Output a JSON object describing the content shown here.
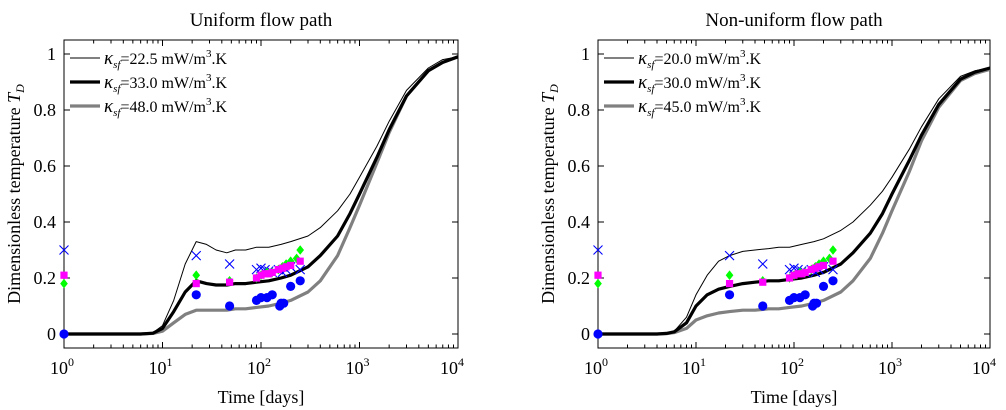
{
  "chart_data": [
    {
      "type": "line",
      "title": "Uniform flow path",
      "xlabel": "Time [days]",
      "ylabel": "Dimensionless temperature T_D",
      "ylabel_main": "Dimensionless temperature ",
      "ylabel_sym": "T",
      "ylabel_sub": "D",
      "xscale": "log",
      "xlim": [
        1,
        10000
      ],
      "ylim": [
        -0.05,
        1.05
      ],
      "x_ticks": [
        1,
        10,
        100,
        1000,
        10000
      ],
      "x_tick_labels": [
        {
          "base": "10",
          "exp": "0"
        },
        {
          "base": "10",
          "exp": "1"
        },
        {
          "base": "10",
          "exp": "2"
        },
        {
          "base": "10",
          "exp": "3"
        },
        {
          "base": "10",
          "exp": "4"
        }
      ],
      "y_ticks": [
        0,
        0.2,
        0.4,
        0.6,
        0.8,
        1
      ],
      "y_tick_labels": [
        "0",
        "0.2",
        "0.4",
        "0.6",
        "0.8",
        "1"
      ],
      "grid": false,
      "legend_position": "top-left",
      "series": [
        {
          "name": "κsf=22.5 mW/m3.K",
          "legend": {
            "sym": "κ",
            "sub": "sf",
            "val": "=22.5 mW/m",
            "sup": "3",
            "tail": ".K"
          },
          "color": "#000000",
          "style": "thin",
          "x": [
            1,
            2,
            4,
            6,
            8,
            10,
            13,
            17,
            22,
            28,
            35,
            45,
            55,
            70,
            90,
            120,
            160,
            200,
            300,
            400,
            600,
            800,
            1000,
            1500,
            2000,
            3000,
            5000,
            7000,
            10000
          ],
          "y": [
            0,
            0,
            0,
            0,
            0.005,
            0.03,
            0.12,
            0.25,
            0.33,
            0.32,
            0.3,
            0.29,
            0.3,
            0.3,
            0.31,
            0.31,
            0.32,
            0.33,
            0.35,
            0.38,
            0.44,
            0.5,
            0.56,
            0.67,
            0.76,
            0.87,
            0.95,
            0.98,
            0.99
          ]
        },
        {
          "name": "κsf=33.0 mW/m3.K",
          "legend": {
            "sym": "κ",
            "sub": "sf",
            "val": "=33.0 mW/m",
            "sup": "3",
            "tail": ".K"
          },
          "color": "#000000",
          "style": "thick",
          "x": [
            1,
            2,
            4,
            6,
            8,
            10,
            13,
            17,
            22,
            28,
            35,
            45,
            55,
            70,
            90,
            120,
            160,
            200,
            300,
            400,
            600,
            800,
            1000,
            1500,
            2000,
            3000,
            5000,
            7000,
            10000
          ],
          "y": [
            0,
            0,
            0,
            0,
            0.003,
            0.02,
            0.08,
            0.15,
            0.19,
            0.18,
            0.175,
            0.175,
            0.18,
            0.18,
            0.185,
            0.19,
            0.2,
            0.21,
            0.24,
            0.28,
            0.35,
            0.43,
            0.5,
            0.63,
            0.73,
            0.85,
            0.94,
            0.97,
            0.99
          ]
        },
        {
          "name": "κsf=48.0 mW/m3.K",
          "legend": {
            "sym": "κ",
            "sub": "sf",
            "val": "=48.0 mW/m",
            "sup": "3",
            "tail": ".K"
          },
          "color": "#808080",
          "style": "gray",
          "x": [
            1,
            2,
            4,
            6,
            8,
            10,
            13,
            17,
            22,
            28,
            35,
            45,
            55,
            70,
            90,
            120,
            160,
            200,
            300,
            400,
            600,
            800,
            1000,
            1500,
            2000,
            3000,
            5000,
            7000,
            10000
          ],
          "y": [
            0,
            0,
            0,
            0,
            0.002,
            0.01,
            0.04,
            0.07,
            0.085,
            0.085,
            0.085,
            0.085,
            0.09,
            0.09,
            0.095,
            0.1,
            0.11,
            0.12,
            0.15,
            0.19,
            0.28,
            0.38,
            0.46,
            0.61,
            0.72,
            0.85,
            0.94,
            0.97,
            0.99
          ]
        }
      ],
      "markers": {
        "blue_x": {
          "color": "#0000ff",
          "shape": "x",
          "x": [
            1,
            22,
            48,
            90,
            100,
            110,
            120,
            130,
            150,
            165,
            180,
            200,
            250
          ],
          "y": [
            0.3,
            0.28,
            0.25,
            0.23,
            0.235,
            0.23,
            0.225,
            0.22,
            0.23,
            0.22,
            0.23,
            0.24,
            0.23
          ]
        },
        "green_diamond": {
          "color": "#00ff00",
          "shape": "diamond",
          "x": [
            1,
            22,
            48,
            90,
            100,
            115,
            130,
            150,
            165,
            180,
            200,
            230,
            250
          ],
          "y": [
            0.18,
            0.21,
            0.19,
            0.2,
            0.21,
            0.22,
            0.22,
            0.23,
            0.24,
            0.25,
            0.26,
            0.27,
            0.3
          ]
        },
        "magenta_square": {
          "color": "#ff00ff",
          "shape": "square",
          "x": [
            1,
            22,
            48,
            90,
            100,
            110,
            120,
            130,
            150,
            165,
            180,
            200,
            250
          ],
          "y": [
            0.21,
            0.18,
            0.185,
            0.2,
            0.21,
            0.215,
            0.215,
            0.22,
            0.23,
            0.235,
            0.24,
            0.245,
            0.26
          ]
        },
        "blue_dot": {
          "color": "#0000ff",
          "shape": "circle",
          "x": [
            1,
            22,
            48,
            90,
            100,
            115,
            130,
            155,
            160,
            170,
            200,
            250
          ],
          "y": [
            0,
            0.14,
            0.1,
            0.12,
            0.13,
            0.13,
            0.14,
            0.1,
            0.11,
            0.11,
            0.17,
            0.19
          ]
        }
      }
    },
    {
      "type": "line",
      "title": "Non-uniform flow path",
      "xlabel": "Time [days]",
      "ylabel": "Dimensionless temperature T_D",
      "ylabel_main": "Dimensionless temperature ",
      "ylabel_sym": "T",
      "ylabel_sub": "D",
      "xscale": "log",
      "xlim": [
        1,
        10000
      ],
      "ylim": [
        -0.05,
        1.05
      ],
      "x_ticks": [
        1,
        10,
        100,
        1000,
        10000
      ],
      "x_tick_labels": [
        {
          "base": "10",
          "exp": "0"
        },
        {
          "base": "10",
          "exp": "1"
        },
        {
          "base": "10",
          "exp": "2"
        },
        {
          "base": "10",
          "exp": "3"
        },
        {
          "base": "10",
          "exp": "4"
        }
      ],
      "y_ticks": [
        0,
        0.2,
        0.4,
        0.6,
        0.8,
        1
      ],
      "y_tick_labels": [
        "0",
        "0.2",
        "0.4",
        "0.6",
        "0.8",
        "1"
      ],
      "grid": false,
      "legend_position": "top-left",
      "series": [
        {
          "name": "κsf=20.0 mW/m3.K",
          "legend": {
            "sym": "κ",
            "sub": "sf",
            "val": "=20.0 mW/m",
            "sup": "3",
            "tail": ".K"
          },
          "color": "#000000",
          "style": "thin",
          "x": [
            1,
            2,
            4,
            5,
            6,
            8,
            10,
            13,
            17,
            22,
            30,
            40,
            55,
            70,
            90,
            120,
            160,
            200,
            300,
            400,
            600,
            800,
            1000,
            1500,
            2000,
            3000,
            5000,
            7000,
            10000
          ],
          "y": [
            0,
            0,
            0,
            0.002,
            0.01,
            0.06,
            0.14,
            0.21,
            0.26,
            0.28,
            0.295,
            0.3,
            0.305,
            0.31,
            0.31,
            0.32,
            0.33,
            0.34,
            0.37,
            0.4,
            0.46,
            0.51,
            0.56,
            0.66,
            0.74,
            0.84,
            0.92,
            0.94,
            0.95
          ]
        },
        {
          "name": "κsf=30.0 mW/m3.K",
          "legend": {
            "sym": "κ",
            "sub": "sf",
            "val": "=30.0 mW/m",
            "sup": "3",
            "tail": ".K"
          },
          "color": "#000000",
          "style": "thick",
          "x": [
            1,
            2,
            4,
            5,
            6,
            8,
            10,
            13,
            17,
            22,
            30,
            40,
            55,
            70,
            90,
            120,
            160,
            200,
            300,
            400,
            600,
            800,
            1000,
            1500,
            2000,
            3000,
            5000,
            7000,
            10000
          ],
          "y": [
            0,
            0,
            0,
            0.002,
            0.008,
            0.04,
            0.1,
            0.14,
            0.16,
            0.17,
            0.18,
            0.185,
            0.19,
            0.19,
            0.195,
            0.2,
            0.21,
            0.22,
            0.25,
            0.29,
            0.36,
            0.43,
            0.5,
            0.62,
            0.71,
            0.82,
            0.91,
            0.935,
            0.95
          ]
        },
        {
          "name": "κsf=45.0 mW/m3.K",
          "legend": {
            "sym": "κ",
            "sub": "sf",
            "val": "=45.0 mW/m",
            "sup": "3",
            "tail": ".K"
          },
          "color": "#808080",
          "style": "gray",
          "x": [
            1,
            2,
            4,
            5,
            6,
            8,
            10,
            13,
            17,
            22,
            30,
            40,
            55,
            70,
            90,
            120,
            160,
            200,
            300,
            400,
            600,
            800,
            1000,
            1500,
            2000,
            3000,
            5000,
            7000,
            10000
          ],
          "y": [
            0,
            0,
            0,
            0.001,
            0.005,
            0.02,
            0.05,
            0.065,
            0.075,
            0.08,
            0.085,
            0.085,
            0.09,
            0.09,
            0.095,
            0.1,
            0.11,
            0.12,
            0.15,
            0.19,
            0.27,
            0.36,
            0.44,
            0.58,
            0.69,
            0.81,
            0.905,
            0.93,
            0.945
          ]
        }
      ],
      "markers": {
        "blue_x": {
          "color": "#0000ff",
          "shape": "x",
          "x": [
            1,
            22,
            48,
            90,
            100,
            110,
            120,
            130,
            150,
            165,
            180,
            200,
            250
          ],
          "y": [
            0.3,
            0.28,
            0.25,
            0.23,
            0.235,
            0.23,
            0.225,
            0.22,
            0.23,
            0.22,
            0.23,
            0.24,
            0.23
          ]
        },
        "green_diamond": {
          "color": "#00ff00",
          "shape": "diamond",
          "x": [
            1,
            22,
            48,
            90,
            100,
            115,
            130,
            150,
            165,
            180,
            200,
            230,
            250
          ],
          "y": [
            0.18,
            0.21,
            0.19,
            0.2,
            0.21,
            0.22,
            0.22,
            0.23,
            0.24,
            0.25,
            0.26,
            0.27,
            0.3
          ]
        },
        "magenta_square": {
          "color": "#ff00ff",
          "shape": "square",
          "x": [
            1,
            22,
            48,
            90,
            100,
            110,
            120,
            130,
            150,
            165,
            180,
            200,
            250
          ],
          "y": [
            0.21,
            0.18,
            0.185,
            0.2,
            0.21,
            0.215,
            0.215,
            0.22,
            0.23,
            0.235,
            0.24,
            0.245,
            0.26
          ]
        },
        "blue_dot": {
          "color": "#0000ff",
          "shape": "circle",
          "x": [
            1,
            22,
            48,
            90,
            100,
            115,
            130,
            155,
            160,
            170,
            200,
            250
          ],
          "y": [
            0,
            0.14,
            0.1,
            0.12,
            0.13,
            0.13,
            0.14,
            0.1,
            0.11,
            0.11,
            0.17,
            0.19
          ]
        }
      }
    }
  ]
}
